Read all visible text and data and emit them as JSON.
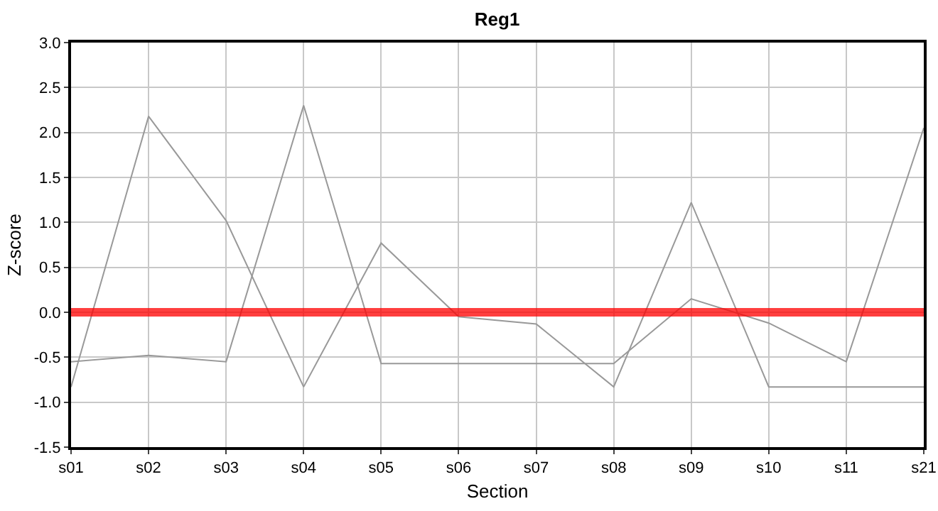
{
  "chart_data": {
    "type": "line",
    "title": "Reg1",
    "xlabel": "Section",
    "ylabel": "Z-score",
    "categories": [
      "s01",
      "s02",
      "s03",
      "s04",
      "s05",
      "s06",
      "s07",
      "s08",
      "s09",
      "s10",
      "s11",
      "s21"
    ],
    "series": [
      {
        "color": "#999999",
        "values": [
          -0.83,
          2.18,
          1.02,
          -0.83,
          0.77,
          -0.05,
          -0.13,
          -0.83,
          1.22,
          -0.83,
          -0.83,
          -0.83
        ]
      },
      {
        "color": "#999999",
        "values": [
          -0.55,
          -0.48,
          -0.55,
          2.3,
          -0.57,
          -0.57,
          -0.57,
          -0.57,
          0.15,
          -0.12,
          -0.55,
          2.05
        ]
      }
    ],
    "ylim": [
      -1.5,
      3.0
    ],
    "yticks": [
      {
        "value": -1.5,
        "label": "-1.5"
      },
      {
        "value": -1,
        "label": "-1.0"
      },
      {
        "value": -0.5,
        "label": "-0.5"
      },
      {
        "value": 0,
        "label": "0.0"
      },
      {
        "value": 0.5,
        "label": "0.5"
      },
      {
        "value": 1,
        "label": "1.0"
      },
      {
        "value": 1.5,
        "label": "1.5"
      },
      {
        "value": 2,
        "label": "2.0"
      },
      {
        "value": 2.5,
        "label": "2.5"
      },
      {
        "value": 3,
        "label": "3.0"
      }
    ],
    "grid": true,
    "ref_lines": [
      {
        "axis": "y",
        "value": 0,
        "color": "#ff0000"
      }
    ]
  }
}
